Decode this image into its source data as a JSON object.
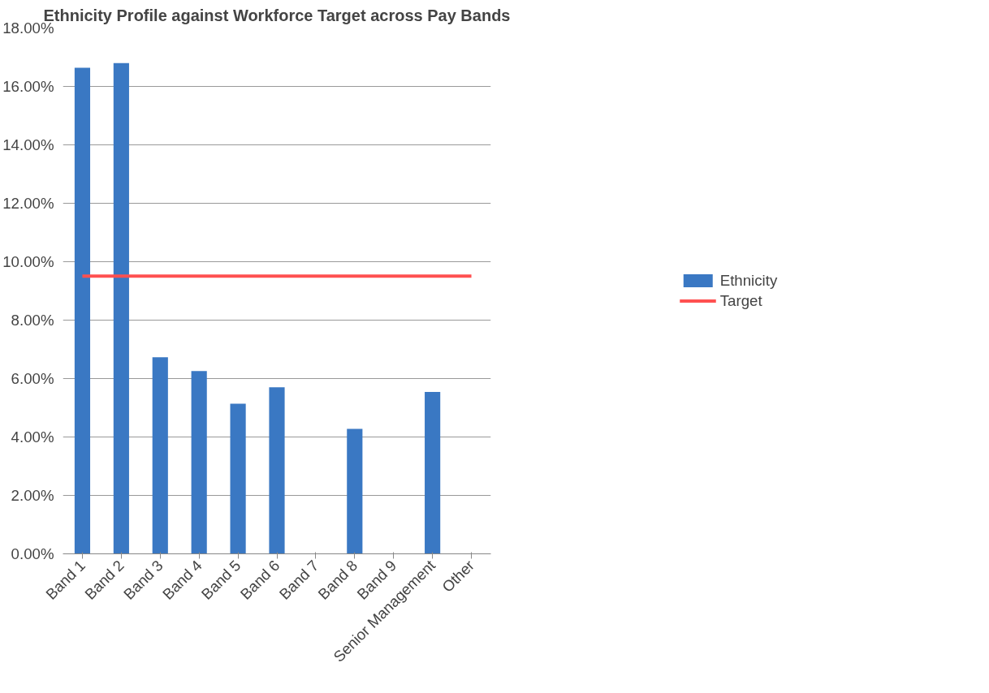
{
  "chart_data": {
    "type": "bar",
    "title": "Ethnicity Profile against Workforce Target across Pay Bands",
    "categories": [
      "Band 1",
      "Band 2",
      "Band 3",
      "Band 4",
      "Band 5",
      "Band 6",
      "Band 7",
      "Band 8",
      "Band 9",
      "Senior Management",
      "Other"
    ],
    "series": [
      {
        "name": "Ethnicity",
        "color": "#3a78c3",
        "values": [
          16.64,
          16.8,
          6.73,
          6.26,
          5.14,
          5.7,
          0,
          4.28,
          0,
          5.54,
          0
        ]
      },
      {
        "name": "Target",
        "type": "line",
        "color": "#ff5050",
        "values": [
          9.51,
          9.51,
          9.51,
          9.51,
          9.51,
          9.51,
          9.51,
          9.51,
          9.51,
          9.51,
          9.51
        ]
      }
    ],
    "ylim": [
      0,
      18
    ],
    "yticks": [
      {
        "value": 0,
        "label": "0.00%"
      },
      {
        "value": 2,
        "label": "2.00%"
      },
      {
        "value": 4,
        "label": "4.00%"
      },
      {
        "value": 6,
        "label": "6.00%"
      },
      {
        "value": 8,
        "label": "8.00%"
      },
      {
        "value": 10,
        "label": "10.00%"
      },
      {
        "value": 12,
        "label": "12.00%"
      },
      {
        "value": 14,
        "label": "14.00%"
      },
      {
        "value": 16,
        "label": "16.00%"
      },
      {
        "value": 18,
        "label": "18.00%"
      }
    ],
    "grid": "y",
    "legend": "right"
  }
}
